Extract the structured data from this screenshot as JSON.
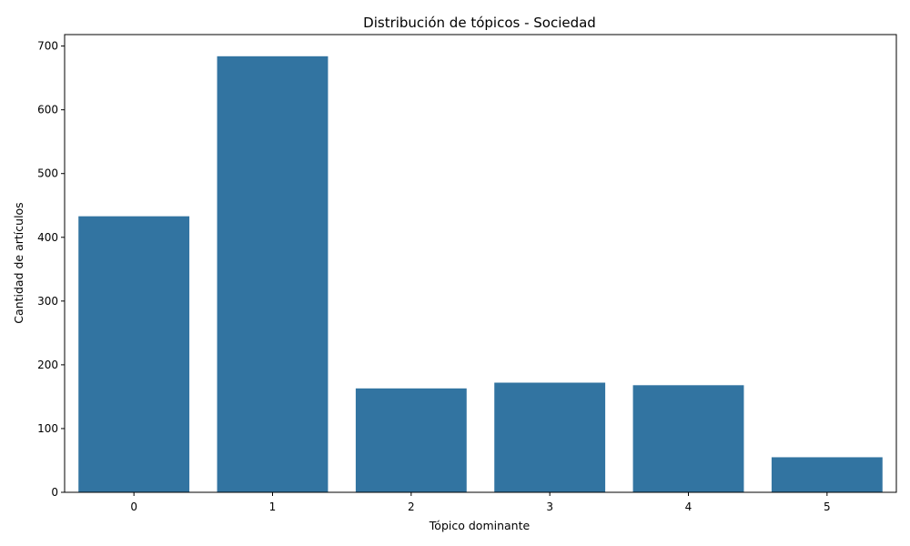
{
  "chart_data": {
    "type": "bar",
    "title": "Distribución de tópicos - Sociedad",
    "xlabel": "Tópico dominante",
    "ylabel": "Cantidad de artículos",
    "categories": [
      "0",
      "1",
      "2",
      "3",
      "4",
      "5"
    ],
    "values": [
      433,
      684,
      163,
      172,
      168,
      55
    ],
    "ylim": [
      0,
      718
    ],
    "yticks": [
      0,
      100,
      200,
      300,
      400,
      500,
      600,
      700
    ],
    "grid": false,
    "bar_color": "#3274a1"
  }
}
